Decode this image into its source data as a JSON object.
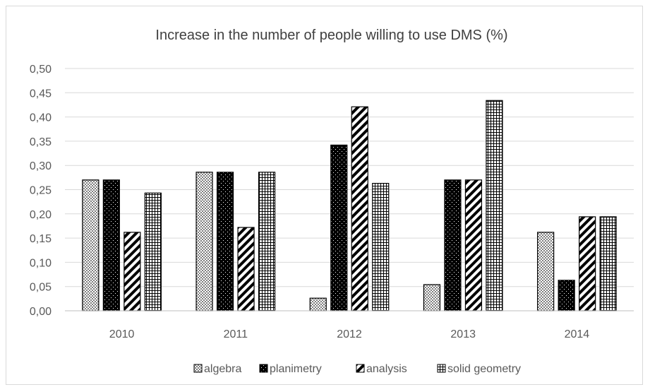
{
  "chart_data": {
    "type": "bar",
    "title": "Increase in the number of people willing to use DMS (%)",
    "xlabel": "",
    "ylabel": "",
    "categories": [
      "2010",
      "2011",
      "2012",
      "2013",
      "2014"
    ],
    "ylim": [
      0,
      0.5
    ],
    "yticks": [
      "0,00",
      "0,05",
      "0,10",
      "0,15",
      "0,20",
      "0,25",
      "0,30",
      "0,35",
      "0,40",
      "0,45",
      "0,50"
    ],
    "grid": true,
    "legend_position": "bottom",
    "series": [
      {
        "name": "algebra",
        "pattern": "dots-gray",
        "values": [
          0.27,
          0.286,
          0.026,
          0.054,
          0.162
        ]
      },
      {
        "name": "planimetry",
        "pattern": "dots-black",
        "values": [
          0.27,
          0.286,
          0.342,
          0.27,
          0.063
        ]
      },
      {
        "name": "analysis",
        "pattern": "diagonal-stripes",
        "values": [
          0.162,
          0.172,
          0.421,
          0.27,
          0.194
        ]
      },
      {
        "name": "solid geometry",
        "pattern": "checker",
        "values": [
          0.243,
          0.286,
          0.263,
          0.434,
          0.194
        ]
      }
    ]
  }
}
